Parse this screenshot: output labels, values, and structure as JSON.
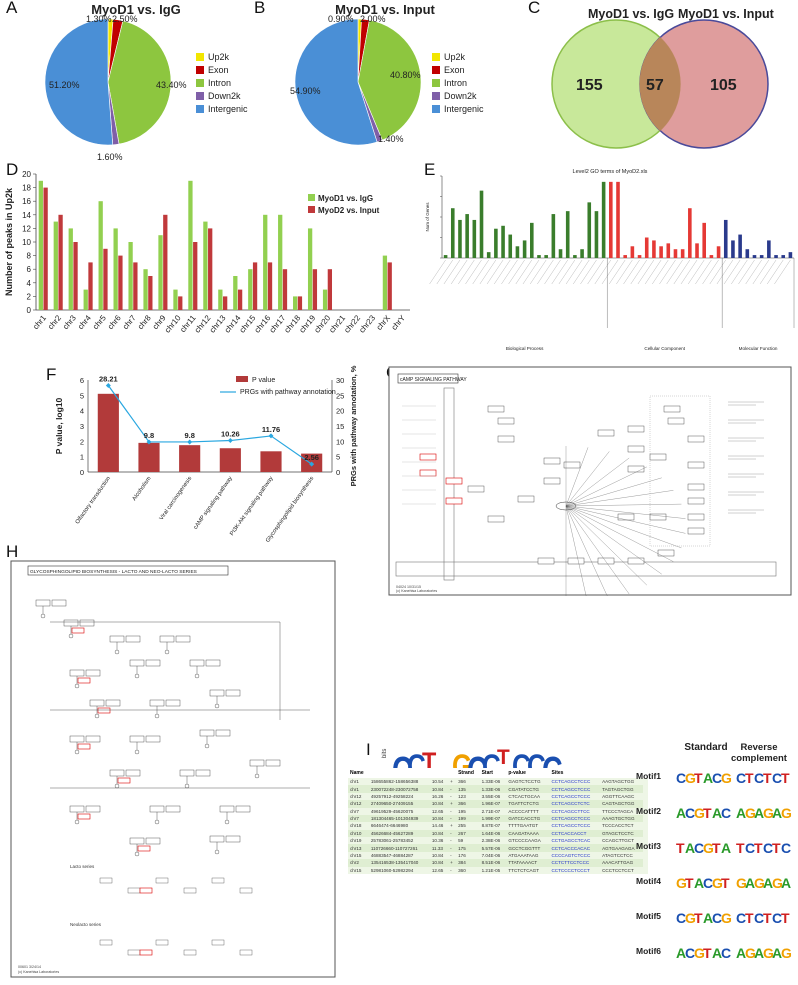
{
  "panel_letters": {
    "A": "A",
    "B": "B",
    "C": "C",
    "D": "D",
    "E": "E",
    "F": "F",
    "G": "G",
    "H": "H",
    "I": "I"
  },
  "legend_pie": [
    "Up2k",
    "Exon",
    "Intron",
    "Down2k",
    "Intergenic"
  ],
  "colors": {
    "up2k": "#f2e600",
    "exon": "#c00000",
    "intron": "#8dc63f",
    "down2k": "#7f5fa8",
    "intergenic": "#4a8fd6",
    "igg": "#92d050",
    "input": "#c0393b",
    "bp": "#3a7d2c",
    "cc": "#e53935",
    "mf": "#2a3a8c"
  },
  "chart_data": [
    {
      "type": "pie",
      "title": "MyoD1 vs. IgG",
      "categories": [
        "Up2k",
        "Exon",
        "Intron",
        "Down2k",
        "Intergenic"
      ],
      "values": [
        1.3,
        2.5,
        43.4,
        1.6,
        51.2
      ],
      "labels": [
        "1.30%",
        "2.50%",
        "43.40%",
        "1.60%",
        "51.20%"
      ]
    },
    {
      "type": "pie",
      "title": "MyoD1 vs. Input",
      "categories": [
        "Up2k",
        "Exon",
        "Intron",
        "Down2k",
        "Intergenic"
      ],
      "values": [
        0.9,
        2.0,
        40.8,
        1.4,
        54.9
      ],
      "labels": [
        "0.90%",
        "2.00%",
        "40.80%",
        "1.40%",
        "54.90%"
      ]
    },
    {
      "type": "venn",
      "sets": [
        "MyoD1 vs. IgG",
        "MyoD1 vs. Input"
      ],
      "only_a": 155,
      "both": 57,
      "only_b": 105
    },
    {
      "type": "bar",
      "ylabel": "Number of peaks in Up2k",
      "ylim": [
        0,
        20
      ],
      "yticks": [
        0,
        2,
        4,
        6,
        8,
        10,
        12,
        14,
        16,
        18,
        20
      ],
      "categories": [
        "chr1",
        "chr2",
        "chr3",
        "chr4",
        "chr5",
        "chr6",
        "chr7",
        "chr8",
        "chr9",
        "chr10",
        "chr11",
        "chr12",
        "chr13",
        "chr14",
        "chr15",
        "chr16",
        "chr17",
        "chr18",
        "chr19",
        "chr20",
        "chr21",
        "chr22",
        "chr23",
        "chrX",
        "chrY"
      ],
      "series": [
        {
          "name": "MyoD1 vs. IgG",
          "values": [
            19,
            13,
            12,
            3,
            16,
            12,
            10,
            6,
            11,
            3,
            19,
            13,
            3,
            5,
            6,
            14,
            14,
            2,
            12,
            3,
            0,
            0,
            0,
            8,
            0
          ]
        },
        {
          "name": "MyoD2 vs. Input",
          "values": [
            18,
            14,
            10,
            7,
            9,
            8,
            7,
            5,
            14,
            2,
            10,
            12,
            2,
            3,
            7,
            7,
            6,
            2,
            6,
            6,
            0,
            0,
            0,
            7,
            0
          ]
        }
      ]
    },
    {
      "type": "bar",
      "title": "Level2 GO terms of MyoD2.xls",
      "ylabel": "Num of Genes",
      "groups": [
        "Biological Process",
        "Cellular Component",
        "Molecular Function"
      ],
      "series": [
        {
          "name": "Biological Process",
          "values": [
            1,
            17,
            13,
            15,
            13,
            23,
            2,
            10,
            11,
            8,
            4,
            6,
            12,
            1,
            1,
            15,
            3,
            16,
            1,
            3,
            19,
            16,
            26
          ]
        },
        {
          "name": "Cellular Component",
          "values": [
            26,
            26,
            1,
            4,
            1,
            7,
            6,
            4,
            5,
            3,
            3,
            17,
            5,
            12,
            1,
            4
          ]
        },
        {
          "name": "Molecular Function",
          "values": [
            13,
            6,
            8,
            3,
            1,
            1,
            6,
            1,
            1,
            2
          ]
        }
      ]
    },
    {
      "type": "bar",
      "ylabel": "P value, log10",
      "y2label": "PRGs with pathway annotation, %",
      "ylim": [
        0,
        6
      ],
      "y2lim": [
        0,
        30
      ],
      "categories": [
        "Olfactory transduction",
        "Alcoholism",
        "Viral carcinogenesis",
        "cAMP signaling pathway",
        "PI3K-Akt signaling pathway",
        "Glycosphingolipid biosynthesis"
      ],
      "series": [
        {
          "name": "P value",
          "values": [
            5.1,
            1.9,
            1.75,
            1.55,
            1.35,
            1.2
          ]
        },
        {
          "name": "PRGs with pathway annotation",
          "values": [
            28.21,
            9.8,
            9.8,
            10.26,
            11.76,
            2.56
          ],
          "labels": [
            "28.21",
            "9.8",
            "9.8",
            "10.26",
            "11.76",
            "2.56"
          ]
        }
      ]
    }
  ],
  "pathway_g": {
    "title": "cAMP SIGNALING PATHWAY",
    "footer1": "04024 10/31/15",
    "footer2": "(c) Kanehisa Laboratories"
  },
  "pathway_h": {
    "title": "GLYCOSPHINGOLIPID BIOSYNTHESIS - LACTO AND NEO-LACTO SERIES",
    "footer1": "00601 3/24/14",
    "footer2": "(c) Kanehisa Laboratories",
    "lacto": "Lacto series",
    "neolacto": "Neolacto series"
  },
  "motif_panel": {
    "col_standard": "Standard",
    "col_reverse": "Reverse complement",
    "motifs": [
      "Motif1",
      "Motif2",
      "Motif3",
      "Motif4",
      "Motif5",
      "Motif6"
    ],
    "logo_letters": "CCTcGCCTCCC",
    "yunit": "bits"
  },
  "motif_table": {
    "headers": [
      "Name",
      "Strand",
      "Start",
      "p-value",
      "Sites"
    ],
    "rows": [
      [
        "chr1",
        "158655862-158656388",
        "10.54",
        "+",
        "366",
        "1.33E-06",
        "GAGTCTCCTG",
        "CCTCAGCCTCCC",
        "AAGTAGCTGG"
      ],
      [
        "chr1",
        "230072248-230072758",
        "10.84",
        "-",
        "135",
        "1.33E-06",
        "CGATATCCTG",
        "CCTCAGCCTCCC",
        "TAGTAGCTGG"
      ],
      [
        "chr12",
        "49257912-49258224",
        "16.26",
        "-",
        "123",
        "3.55E-06",
        "CTCACTGCAA",
        "CCTCAGCCTCCC",
        "AGGTTCAAGC"
      ],
      [
        "chr12",
        "27409650-27409155",
        "10.84",
        "+",
        "366",
        "1.96E-07",
        "TGATTCTCTG",
        "CCTCAGCCTCTC",
        "CAGTAGCTGG"
      ],
      [
        "chr7",
        "49619529-45620075",
        "12.65",
        "-",
        "195",
        "2.71E-07",
        "ACCCCATTTT",
        "CCTCAGCCTTCC",
        "TTCCCTAGCA"
      ],
      [
        "chr7",
        "181304465-101304939",
        "10.84",
        "-",
        "199",
        "1.99E-07",
        "GATCCACCTG",
        "CCTCAGCCTCCC",
        "AAAGTGCTGG"
      ],
      [
        "chr18",
        "6646474-6646980",
        "14.46",
        "+",
        "255",
        "8.87E-07",
        "TTTTGAATGT",
        "CCTCAGCCTCCC",
        "TCCCACCTCT"
      ],
      [
        "chr10",
        "45626684-45627289",
        "10.84",
        "-",
        "267",
        "1.64E-06",
        "CAAGATAAAA",
        "CCTCACCACCT",
        "GTAGCTCCTC"
      ],
      [
        "chr19",
        "25783061-25783452",
        "10.36",
        "-",
        "59",
        "2.38E-06",
        "GTCCCCAAGA",
        "CCTGAGCCTCAC",
        "CCAGCTTGCT"
      ],
      [
        "chr13",
        "110726660-110727261",
        "11.33",
        "-",
        "175",
        "5.57E-06",
        "GCCTCGGTTT",
        "CCTCACCCACAC",
        "AGTGAAGAGA"
      ],
      [
        "chr15",
        "46883547-46884287",
        "10.84",
        "-",
        "176",
        "7.04E-06",
        "ATGAAATAAG",
        "CCCCAGTCTCCC",
        "ATAGTCCTCC"
      ],
      [
        "chr2",
        "135416538-135417040",
        "10.84",
        "+",
        "384",
        "8.51E-06",
        "TTATAAAACT",
        "CCTCTTCCTCCC",
        "AAACATTGAG"
      ],
      [
        "chr15",
        "52981060-52982294",
        "12.65",
        "-",
        "360",
        "1.21E-05",
        "TTCTCTCAGT",
        "CCTCCCCTCCCT",
        "CCCTCCTCCT"
      ]
    ]
  },
  "axis_labels_go": [
    "Biological Process",
    "Cellular Component",
    "Molecular Function"
  ]
}
